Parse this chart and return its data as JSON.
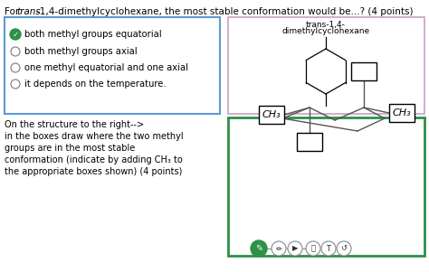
{
  "title_prefix": "For ",
  "title_italic": "trans",
  "title_suffix": "-1,4-dimethylcyclohexane, the most stable conformation would be...? (4 points)",
  "options": [
    "both methyl groups equatorial",
    "both methyl groups axial",
    "one methyl equatorial and one axial",
    "it depends on the temperature."
  ],
  "correct_option": 0,
  "molecule_label_line1": "trans-1,4-",
  "molecule_label_line2": "dimethylcyclohexane",
  "bottom_text_lines": [
    "On the structure to the right-->",
    "in the boxes draw where the two methyl",
    "groups are in the most stable",
    "conformation (indicate by adding CH₃ to",
    "the appropriate boxes shown) (4 points)"
  ],
  "ch3_left": "CH₃",
  "ch3_right": "CH₃",
  "bg_color": "#ffffff",
  "blue_border": "#5b9bd5",
  "pink_border": "#c9a0c0",
  "green_border": "#2d9147",
  "check_green": "#2d9147",
  "text_color": "#1a1a1a",
  "toolbar_green": "#2d9147"
}
